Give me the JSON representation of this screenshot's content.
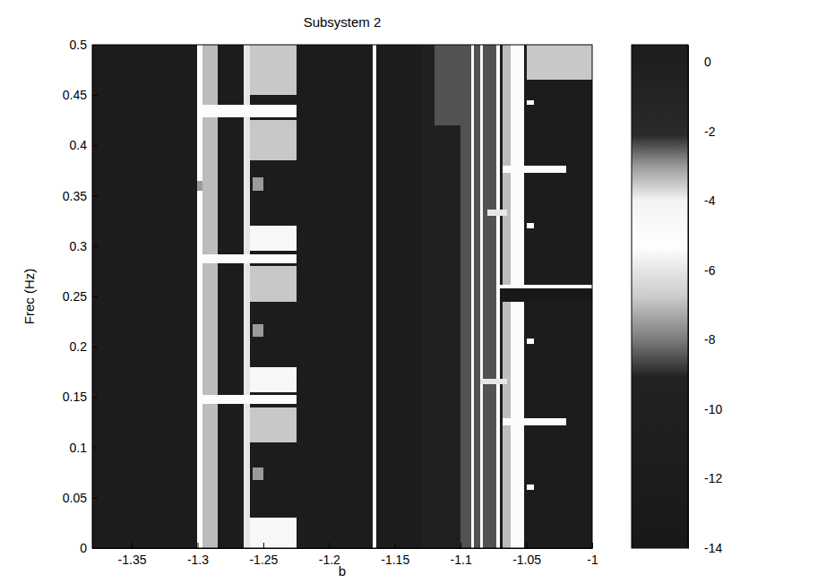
{
  "chart_data": {
    "type": "heatmap",
    "title": "Subsystem 2",
    "x_label": "b",
    "y_label": "Frec (Hz)",
    "xlim": [
      -1.38,
      -1
    ],
    "xticks": [
      -1.35,
      -1.3,
      -1.25,
      -1.2,
      -1.15,
      -1.1,
      -1.05,
      -1
    ],
    "ylim": [
      0,
      0.5
    ],
    "yticks": [
      0,
      0.05,
      0.1,
      0.15,
      0.2,
      0.25,
      0.3,
      0.35,
      0.4,
      0.45,
      0.5
    ],
    "colorbar": {
      "range": [
        -14,
        0.5
      ],
      "ticks": [
        0,
        -2,
        -4,
        -6,
        -8,
        -10,
        -12,
        -14
      ]
    },
    "cells": [
      {
        "b": [
          -1.38,
          -1
        ],
        "f": [
          0,
          0.5
        ],
        "value": -12
      },
      {
        "b": [
          -1.3,
          -1.296
        ],
        "f": [
          0,
          0.5
        ],
        "value": -5
      },
      {
        "b": [
          -1.296,
          -1.285
        ],
        "f": [
          0,
          0.5
        ],
        "value": -7
      },
      {
        "b": [
          -1.265,
          -1.225
        ],
        "f": [
          0.45,
          0.5
        ],
        "value": -3.5
      },
      {
        "b": [
          -1.265,
          -1.225
        ],
        "f": [
          0.385,
          0.425
        ],
        "value": -3.5
      },
      {
        "b": [
          -1.265,
          -1.225
        ],
        "f": [
          0.295,
          0.32
        ],
        "value": -5.5
      },
      {
        "b": [
          -1.265,
          -1.225
        ],
        "f": [
          0.245,
          0.28
        ],
        "value": -3.5
      },
      {
        "b": [
          -1.265,
          -1.225
        ],
        "f": [
          0.155,
          0.18
        ],
        "value": -5.5
      },
      {
        "b": [
          -1.265,
          -1.225
        ],
        "f": [
          0.105,
          0.14
        ],
        "value": -3.5
      },
      {
        "b": [
          -1.265,
          -1.225
        ],
        "f": [
          0,
          0.03
        ],
        "value": -5.5
      },
      {
        "b": [
          -1.265,
          -1.26
        ],
        "f": [
          0,
          0.5
        ],
        "value": -6
      },
      {
        "b": [
          -1.3,
          -1.225
        ],
        "f": [
          0.428,
          0.44
        ],
        "value": -5
      },
      {
        "b": [
          -1.3,
          -1.225
        ],
        "f": [
          0.283,
          0.292
        ],
        "value": -5
      },
      {
        "b": [
          -1.3,
          -1.225
        ],
        "f": [
          0.143,
          0.152
        ],
        "value": -5
      },
      {
        "b": [
          -1.258,
          -1.25
        ],
        "f": [
          0.355,
          0.368
        ],
        "value": -3
      },
      {
        "b": [
          -1.258,
          -1.25
        ],
        "f": [
          0.21,
          0.222
        ],
        "value": -3
      },
      {
        "b": [
          -1.258,
          -1.25
        ],
        "f": [
          0.068,
          0.08
        ],
        "value": -3
      },
      {
        "b": [
          -1.3,
          -1.296
        ],
        "f": [
          0.355,
          0.365
        ],
        "value": -3
      },
      {
        "b": [
          -1.167,
          -1.164
        ],
        "f": [
          0,
          0.5
        ],
        "value": -5
      },
      {
        "b": [
          -1.13,
          -1.1
        ],
        "f": [
          0,
          0.5
        ],
        "value": -10
      },
      {
        "b": [
          -1.1,
          -1.072
        ],
        "f": [
          0,
          0.5
        ],
        "value": -8.5
      },
      {
        "b": [
          -1.12,
          -1.1
        ],
        "f": [
          0.42,
          0.5
        ],
        "value": -8.5
      },
      {
        "b": [
          -1.092,
          -1.09
        ],
        "f": [
          0,
          0.5
        ],
        "value": -5.5
      },
      {
        "b": [
          -1.085,
          -1.083
        ],
        "f": [
          0,
          0.5
        ],
        "value": -5.5
      },
      {
        "b": [
          -1.073,
          -1.07
        ],
        "f": [
          0,
          0.5
        ],
        "value": -5
      },
      {
        "b": [
          -1.068,
          -1.062
        ],
        "f": [
          0,
          0.5
        ],
        "value": -7
      },
      {
        "b": [
          -1.062,
          -1.052
        ],
        "f": [
          0,
          0.5
        ],
        "value": -5
      },
      {
        "b": [
          -1.05,
          -1
        ],
        "f": [
          0.465,
          0.5
        ],
        "value": -3.5
      },
      {
        "b": [
          -1.07,
          -1
        ],
        "f": [
          0.245,
          0.258
        ],
        "value": -14
      },
      {
        "b": [
          -1.07,
          -1
        ],
        "f": [
          0.258,
          0.262
        ],
        "value": -5
      },
      {
        "b": [
          -1.068,
          -1.02
        ],
        "f": [
          0.373,
          0.38
        ],
        "value": -5
      },
      {
        "b": [
          -1.068,
          -1.02
        ],
        "f": [
          0.122,
          0.129
        ],
        "value": -5
      },
      {
        "b": [
          -1.085,
          -1.065
        ],
        "f": [
          0.163,
          0.168
        ],
        "value": -6
      },
      {
        "b": [
          -1.08,
          -1.065
        ],
        "f": [
          0.33,
          0.336
        ],
        "value": -6
      },
      {
        "b": [
          -1.05,
          -1.044
        ],
        "f": [
          0.44,
          0.445
        ],
        "value": -5
      },
      {
        "b": [
          -1.05,
          -1.044
        ],
        "f": [
          0.318,
          0.323
        ],
        "value": -5
      },
      {
        "b": [
          -1.05,
          -1.044
        ],
        "f": [
          0.203,
          0.208
        ],
        "value": -5
      },
      {
        "b": [
          -1.05,
          -1.044
        ],
        "f": [
          0.058,
          0.063
        ],
        "value": -5
      }
    ]
  }
}
